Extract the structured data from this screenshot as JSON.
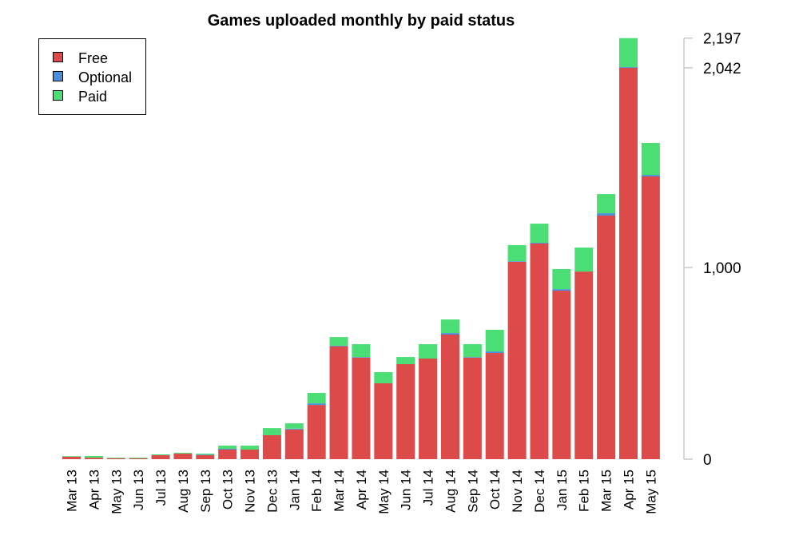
{
  "chart_data": {
    "type": "bar",
    "stacked": true,
    "title": "Games uploaded monthly by paid status",
    "xlabel": "",
    "ylabel": "",
    "ylim": [
      0,
      2197
    ],
    "y_ticks": [
      0,
      1000,
      2042,
      2197
    ],
    "y_tick_labels": [
      "0",
      "1,000",
      "2,042",
      "2,197"
    ],
    "y_axis_side": "right",
    "grid": false,
    "legend_position": "top-left",
    "categories": [
      "Mar 13",
      "Apr 13",
      "May 13",
      "Jun 13",
      "Jul 13",
      "Aug 13",
      "Sep 13",
      "Oct 13",
      "Nov 13",
      "Dec 13",
      "Jan 14",
      "Feb 14",
      "Mar 14",
      "Apr 14",
      "May 14",
      "Jun 14",
      "Jul 14",
      "Aug 14",
      "Sep 14",
      "Oct 14",
      "Nov 14",
      "Dec 14",
      "Jan 15",
      "Feb 15",
      "Mar 15",
      "Apr 15",
      "May 15"
    ],
    "series": [
      {
        "name": "Free",
        "color": "#DD4A4A",
        "values": [
          13,
          8,
          5,
          5,
          21,
          29,
          21,
          50,
          50,
          125,
          155,
          283,
          589,
          530,
          396,
          496,
          525,
          650,
          530,
          554,
          1030,
          1125,
          879,
          979,
          1271,
          2042,
          1475
        ]
      },
      {
        "name": "Optional",
        "color": "#4A8FD9",
        "values": [
          0,
          0,
          0,
          0,
          0,
          0,
          3,
          4,
          0,
          0,
          4,
          8,
          3,
          3,
          0,
          0,
          0,
          8,
          3,
          8,
          3,
          4,
          8,
          0,
          12,
          4,
          8
        ]
      },
      {
        "name": "Paid",
        "color": "#4ADE74",
        "values": [
          3,
          9,
          3,
          3,
          4,
          4,
          5,
          17,
          21,
          37,
          28,
          55,
          45,
          67,
          58,
          37,
          75,
          71,
          67,
          113,
          84,
          100,
          105,
          125,
          100,
          151,
          167
        ]
      }
    ]
  }
}
